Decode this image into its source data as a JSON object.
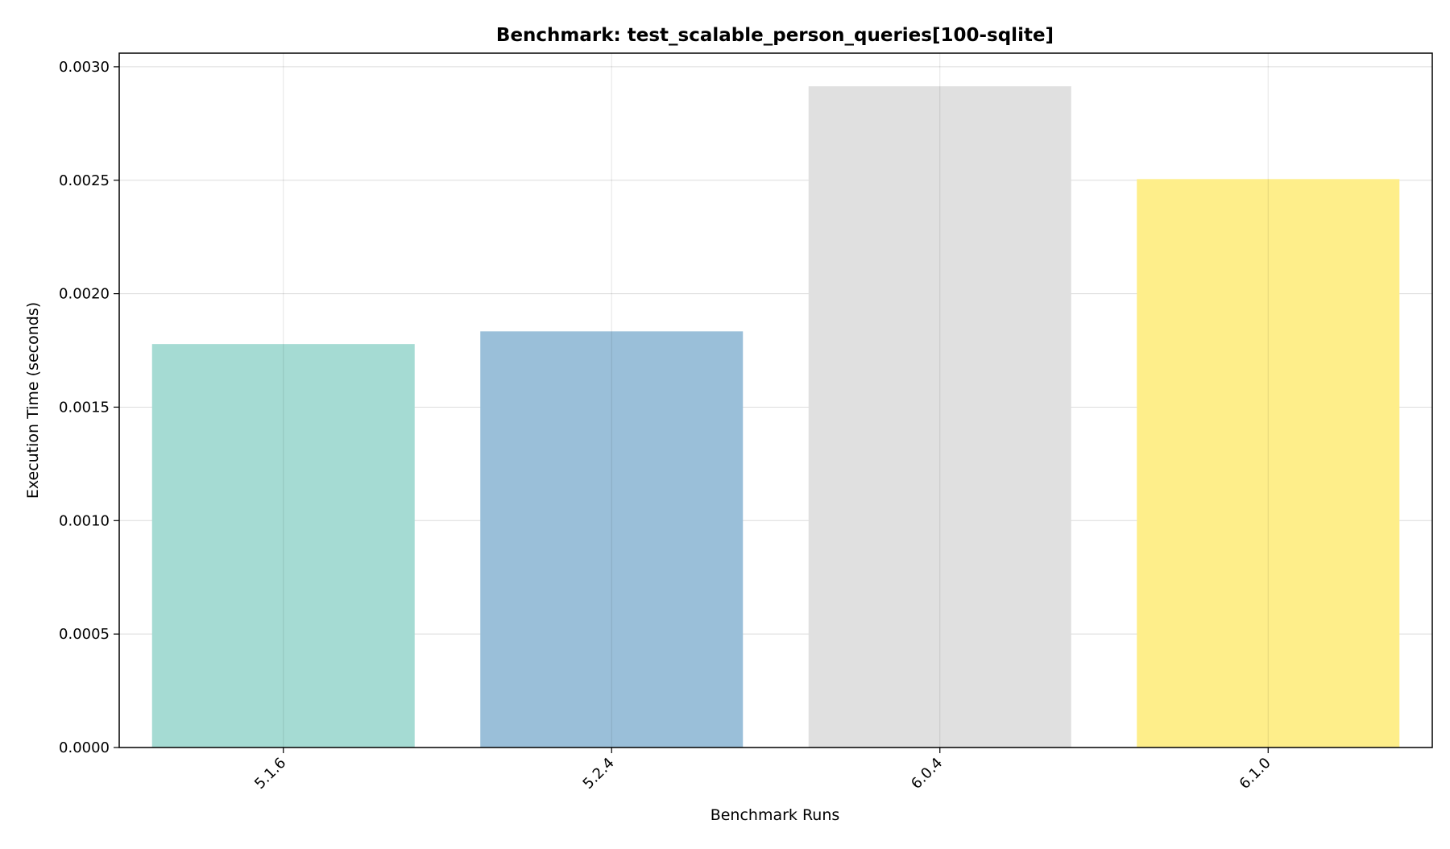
{
  "chart_data": {
    "type": "bar",
    "title": "Benchmark: test_scalable_person_queries[100-sqlite]",
    "xlabel": "Benchmark Runs",
    "ylabel": "Execution Time (seconds)",
    "categories": [
      "5.1.6",
      "5.2.4",
      "6.0.4",
      "6.1.0"
    ],
    "values": [
      0.001778,
      0.001834,
      0.002914,
      0.002505
    ],
    "bar_colors": [
      "#a5dbd3",
      "#9abfd9",
      "#e0e0e0",
      "#feee8a"
    ],
    "ylim": [
      0,
      0.00306
    ],
    "yticks": [
      0.0,
      0.0005,
      0.001,
      0.0015,
      0.002,
      0.0025,
      0.003
    ],
    "ytick_labels": [
      "0.0000",
      "0.0005",
      "0.0010",
      "0.0015",
      "0.0020",
      "0.0025",
      "0.0030"
    ],
    "grid": true,
    "legend": "none"
  }
}
